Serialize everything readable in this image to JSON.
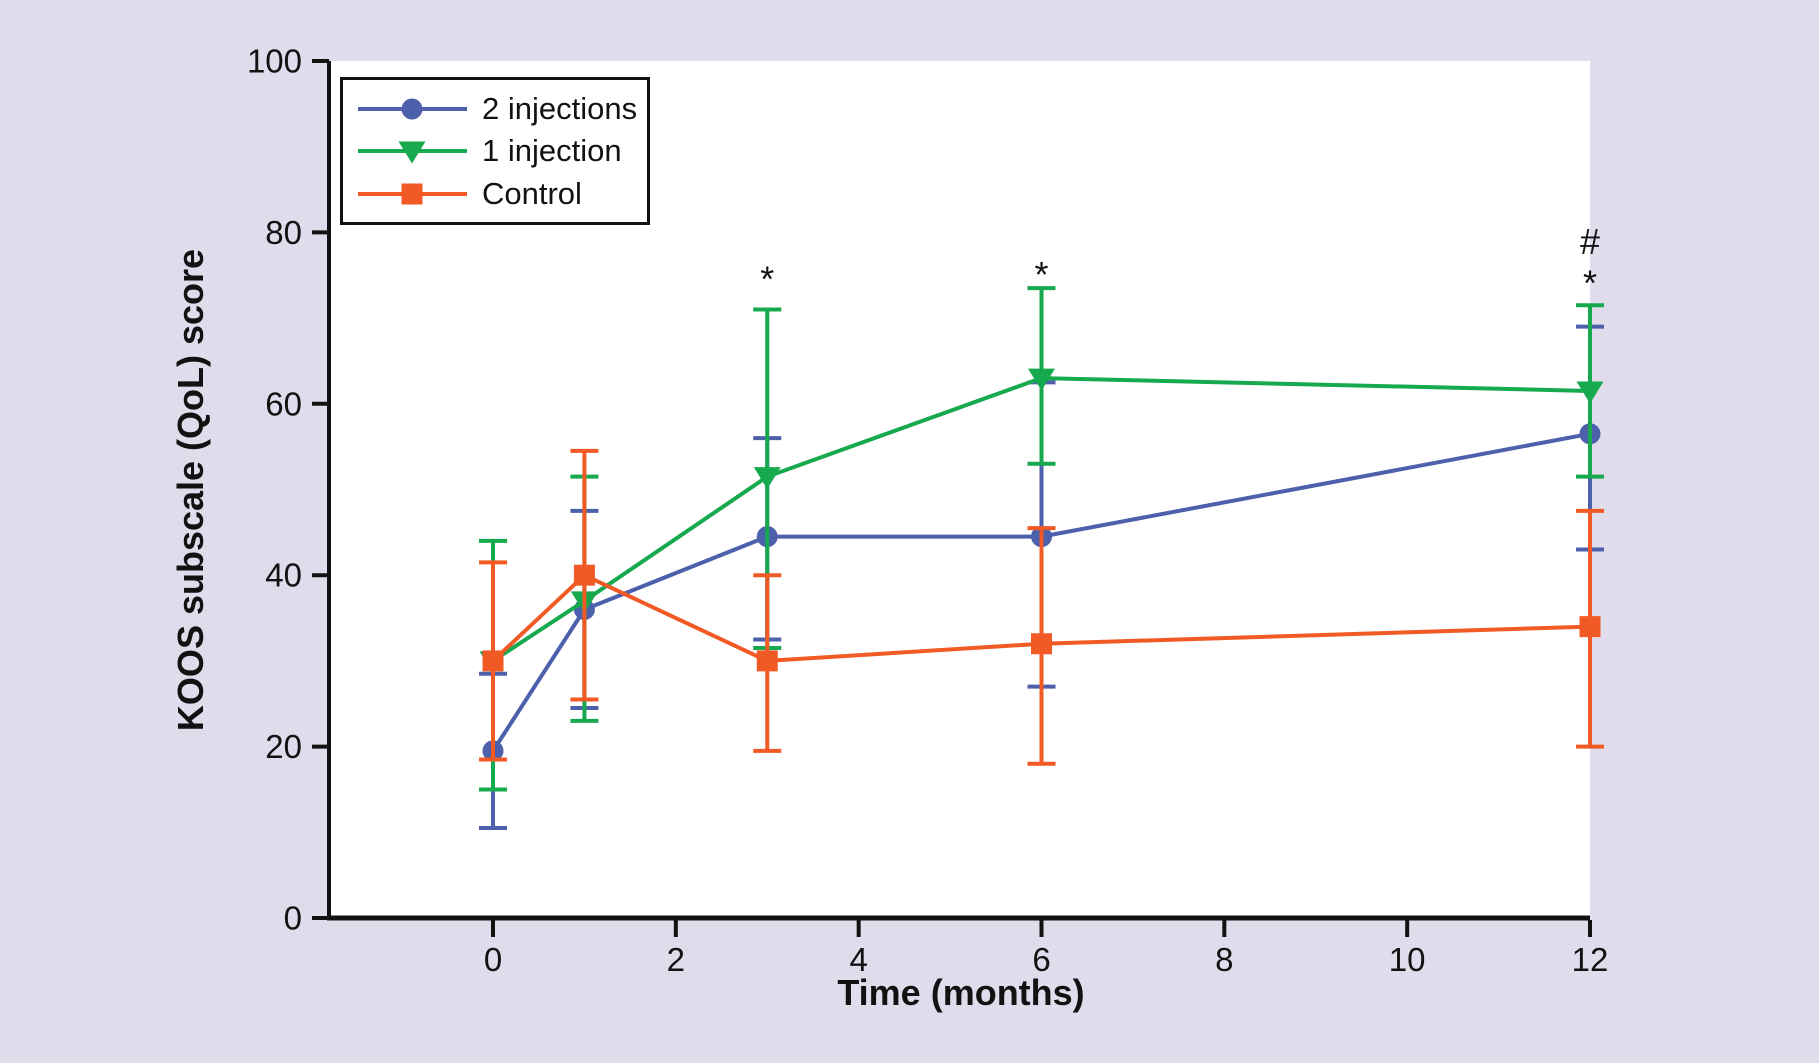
{
  "figure": {
    "background_color": "#e1dcec",
    "plot_background": "#ffffff",
    "axis_color": "#121212"
  },
  "chart_data": {
    "type": "line",
    "title": "",
    "xlabel": "Time (months)",
    "ylabel": "KOOS subscale (QoL) score",
    "x": [
      0,
      1,
      3,
      6,
      12
    ],
    "xticks": [
      0,
      2,
      4,
      6,
      8,
      10,
      12
    ],
    "yticks": [
      0,
      20,
      40,
      60,
      80,
      100
    ],
    "xlim": [
      -1.8,
      12
    ],
    "ylim": [
      0,
      100
    ],
    "grid": false,
    "legend_position": "top-left",
    "series": [
      {
        "name": "2 injections",
        "color": "#4d60ac",
        "marker": "circle",
        "values": [
          19.5,
          36,
          44.5,
          44.5,
          56.5
        ],
        "err_low": [
          10.5,
          24.5,
          32.5,
          27,
          43
        ],
        "err_high": [
          28.5,
          47.5,
          56,
          62.5,
          69
        ]
      },
      {
        "name": "1 injection",
        "color": "#16a94e",
        "marker": "triangle-down",
        "values": [
          30,
          37,
          51.5,
          63,
          61.5
        ],
        "err_low": [
          15,
          23,
          31.5,
          53,
          51.5
        ],
        "err_high": [
          44,
          51.5,
          71,
          73.5,
          71.5
        ]
      },
      {
        "name": "Control",
        "color": "#f15a25",
        "marker": "square",
        "values": [
          30,
          40,
          30,
          32,
          34
        ],
        "err_low": [
          18.5,
          25.5,
          19.5,
          18,
          20
        ],
        "err_high": [
          41.5,
          54.5,
          40,
          45.5,
          47.5
        ]
      }
    ],
    "annotations": [
      {
        "text": "*",
        "x": 3,
        "y": 75
      },
      {
        "text": "*",
        "x": 6,
        "y": 75.5
      },
      {
        "text": "#",
        "x": 12,
        "y": 79
      },
      {
        "text": "*",
        "x": 12,
        "y": 74.5
      }
    ]
  }
}
